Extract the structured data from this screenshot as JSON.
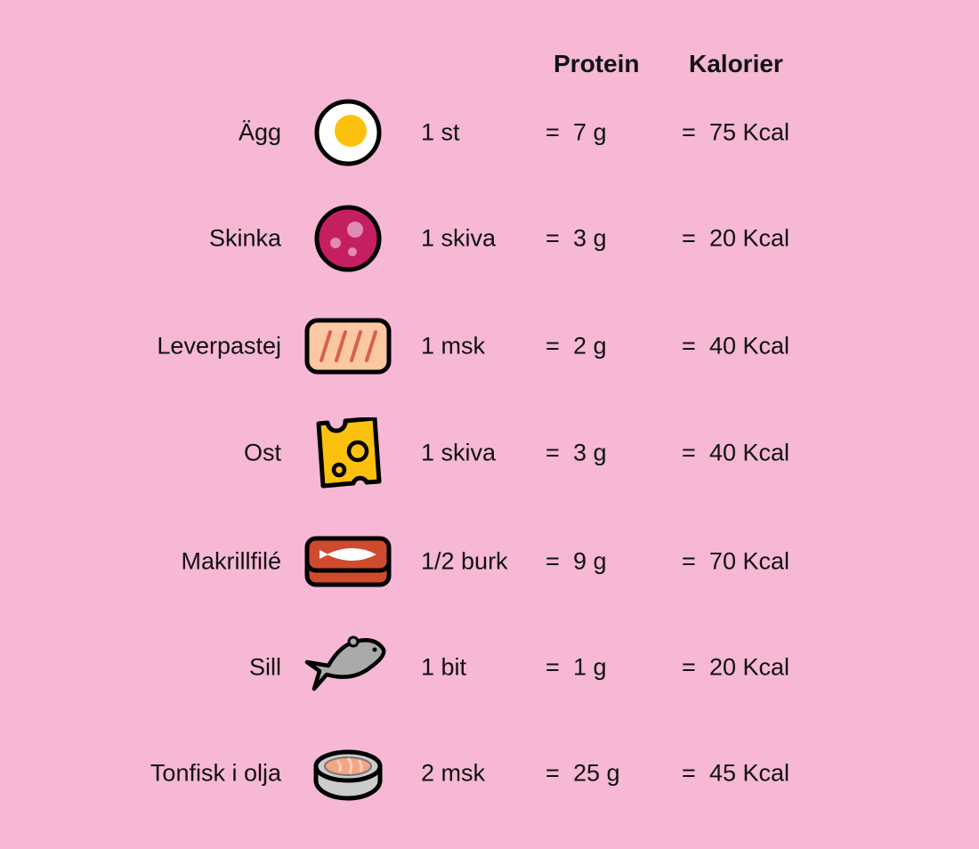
{
  "headers": {
    "protein": "Protein",
    "calories": "Kalorier"
  },
  "equals": "=",
  "rows": [
    {
      "name": "Ägg",
      "portion": "1 st",
      "protein": "7 g",
      "calories": "75 Kcal",
      "icon": "egg-icon"
    },
    {
      "name": "Skinka",
      "portion": "1 skiva",
      "protein": "3 g",
      "calories": "20 Kcal",
      "icon": "ham-icon"
    },
    {
      "name": "Leverpastej",
      "portion": "1 msk",
      "protein": "2 g",
      "calories": "40 Kcal",
      "icon": "liver-pate-icon"
    },
    {
      "name": "Ost",
      "portion": "1 skiva",
      "protein": "3 g",
      "calories": "40 Kcal",
      "icon": "cheese-icon"
    },
    {
      "name": "Makrillfilé",
      "portion": "1/2 burk",
      "protein": "9 g",
      "calories": "70 Kcal",
      "icon": "mackerel-can-icon"
    },
    {
      "name": "Sill",
      "portion": "1 bit",
      "protein": "1 g",
      "calories": "20 Kcal",
      "icon": "herring-icon"
    },
    {
      "name": "Tonfisk i olja",
      "portion": "2 msk",
      "protein": "25 g",
      "calories": "45 Kcal",
      "icon": "tuna-can-icon"
    }
  ],
  "colors": {
    "background": "#f6b8d4",
    "yolk": "#fcc10e",
    "ham": "#c51f62",
    "pate": "#fcc8a3",
    "cheese": "#fcc10e",
    "mackerel": "#cf4a2e",
    "herring": "#aaaaaa"
  }
}
